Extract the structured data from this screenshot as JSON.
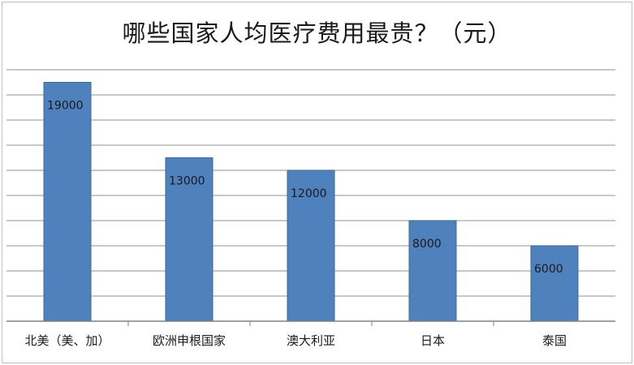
{
  "chart_data": {
    "type": "bar",
    "title": "哪些国家人均医疗费用最贵？（元）",
    "categories": [
      "北美（美、加）",
      "欧洲申根国家",
      "澳大利亚",
      "日本",
      "泰国"
    ],
    "values": [
      19000,
      13000,
      12000,
      8000,
      6000
    ],
    "data_labels": [
      "19000",
      "13000",
      "12000",
      "8000",
      "6000"
    ],
    "ylim": [
      0,
      20000
    ],
    "y_gridline_step": 2000,
    "grid": true,
    "legend": "none",
    "colors": {
      "bar": "#4f81bd",
      "bar_edge": "#3a6aa3",
      "grid": "#a6a6a6",
      "axis": "#808080"
    }
  }
}
